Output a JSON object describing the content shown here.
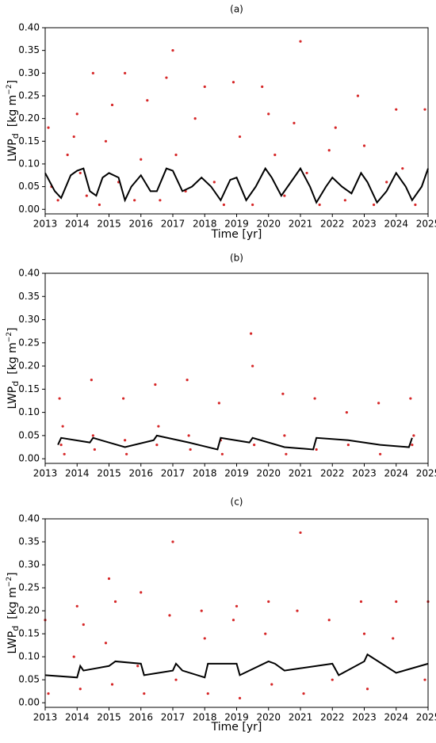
{
  "chart_data": [
    {
      "type": "scatter",
      "title": "(a)",
      "xlabel": "Time  [yr]",
      "ylabel": {
        "main": "LWP",
        "sub": "d",
        "unit": "[kg m",
        "sup": "−2",
        "end": "]"
      },
      "xlim": [
        2013,
        2025
      ],
      "ylim": [
        -0.01,
        0.4
      ],
      "xticks": [
        2013,
        2014,
        2015,
        2016,
        2017,
        2018,
        2019,
        2020,
        2021,
        2022,
        2023,
        2024,
        2025
      ],
      "yticks": [
        {
          "value": 0,
          "label": "0.00"
        },
        0.05,
        {
          "value": 0.1,
          "label": "0.10"
        },
        0.15,
        {
          "value": 0.2,
          "label": "0.20"
        },
        0.25,
        {
          "value": 0.3,
          "label": "0.30"
        },
        0.35,
        {
          "value": 0.4,
          "label": "0.40"
        }
      ],
      "points": {
        "color": "#d62728",
        "x": [
          2013.1,
          2013.2,
          2013.4,
          2013.7,
          2013.9,
          2014.0,
          2014.1,
          2014.3,
          2014.5,
          2014.7,
          2014.9,
          2015.1,
          2015.3,
          2015.5,
          2015.8,
          2016.0,
          2016.2,
          2016.6,
          2016.8,
          2017.0,
          2017.1,
          2017.4,
          2017.7,
          2018.0,
          2018.3,
          2018.6,
          2018.9,
          2019.1,
          2019.5,
          2019.8,
          2020.0,
          2020.2,
          2020.5,
          2020.8,
          2021.0,
          2021.2,
          2021.6,
          2021.9,
          2022.1,
          2022.4,
          2022.8,
          2023.0,
          2023.3,
          2023.7,
          2024.0,
          2024.2,
          2024.6,
          2024.9
        ],
        "y": [
          0.18,
          0.05,
          0.02,
          0.12,
          0.16,
          0.21,
          0.08,
          0.03,
          0.3,
          0.01,
          0.15,
          0.23,
          0.06,
          0.3,
          0.02,
          0.11,
          0.24,
          0.02,
          0.29,
          0.35,
          0.12,
          0.04,
          0.2,
          0.27,
          0.06,
          0.01,
          0.28,
          0.16,
          0.01,
          0.27,
          0.21,
          0.12,
          0.03,
          0.19,
          0.37,
          0.08,
          0.01,
          0.13,
          0.18,
          0.02,
          0.25,
          0.14,
          0.01,
          0.06,
          0.22,
          0.09,
          0.01,
          0.22
        ]
      },
      "line": {
        "color": "#000000",
        "x": [
          2013,
          2013.3,
          2013.5,
          2013.8,
          2014,
          2014.2,
          2014.4,
          2014.6,
          2014.8,
          2015,
          2015.3,
          2015.5,
          2015.7,
          2016,
          2016.3,
          2016.5,
          2016.8,
          2017,
          2017.3,
          2017.6,
          2017.9,
          2018.2,
          2018.5,
          2018.8,
          2019,
          2019.3,
          2019.6,
          2019.9,
          2020.1,
          2020.4,
          2020.7,
          2021,
          2021.3,
          2021.5,
          2021.8,
          2022,
          2022.3,
          2022.6,
          2022.9,
          2023.1,
          2023.4,
          2023.7,
          2024,
          2024.3,
          2024.5,
          2024.8,
          2025
        ],
        "y": [
          0.08,
          0.04,
          0.025,
          0.075,
          0.085,
          0.09,
          0.04,
          0.03,
          0.07,
          0.08,
          0.07,
          0.02,
          0.05,
          0.075,
          0.04,
          0.04,
          0.09,
          0.085,
          0.04,
          0.05,
          0.07,
          0.05,
          0.02,
          0.065,
          0.07,
          0.02,
          0.05,
          0.09,
          0.07,
          0.03,
          0.06,
          0.09,
          0.05,
          0.015,
          0.05,
          0.07,
          0.05,
          0.035,
          0.08,
          0.06,
          0.015,
          0.04,
          0.08,
          0.05,
          0.02,
          0.05,
          0.09
        ]
      }
    },
    {
      "type": "scatter",
      "title": "(b)",
      "ylabel": {
        "main": "LWP",
        "sub": "d",
        "unit": "[kg m",
        "sup": "−2",
        "end": "]"
      },
      "xlim": [
        2013,
        2025
      ],
      "ylim": [
        -0.01,
        0.4
      ],
      "xticks": [
        2013,
        2014,
        2015,
        2016,
        2017,
        2018,
        2019,
        2020,
        2021,
        2022,
        2023,
        2024,
        2025
      ],
      "yticks": [
        {
          "value": 0,
          "label": "0.00"
        },
        0.05,
        {
          "value": 0.1,
          "label": "0.10"
        },
        0.15,
        {
          "value": 0.2,
          "label": "0.20"
        },
        0.25,
        {
          "value": 0.3,
          "label": "0.30"
        },
        0.35,
        {
          "value": 0.4,
          "label": "0.40"
        }
      ],
      "points": {
        "color": "#d62728",
        "x": [
          2013.45,
          2013.5,
          2013.55,
          2013.6,
          2014.45,
          2014.5,
          2014.55,
          2015.45,
          2015.5,
          2015.55,
          2016.45,
          2016.5,
          2016.55,
          2017.45,
          2017.5,
          2017.55,
          2018.45,
          2018.5,
          2018.55,
          2019.45,
          2019.5,
          2019.55,
          2020.45,
          2020.5,
          2020.55,
          2021.45,
          2021.5,
          2022.45,
          2022.5,
          2023.45,
          2023.5,
          2024.45,
          2024.5,
          2024.55
        ],
        "y": [
          0.13,
          0.03,
          0.07,
          0.01,
          0.17,
          0.05,
          0.02,
          0.13,
          0.04,
          0.01,
          0.16,
          0.03,
          0.07,
          0.17,
          0.05,
          0.02,
          0.12,
          0.04,
          0.01,
          0.27,
          0.2,
          0.03,
          0.14,
          0.05,
          0.01,
          0.13,
          0.02,
          0.1,
          0.03,
          0.12,
          0.01,
          0.13,
          0.03,
          0.05
        ]
      },
      "line": {
        "color": "#000000",
        "x": [
          2013.4,
          2013.5,
          2014.4,
          2014.5,
          2015.5,
          2016.4,
          2016.5,
          2017.5,
          2018.4,
          2018.5,
          2019.4,
          2019.5,
          2020.5,
          2021.4,
          2021.5,
          2022.5,
          2023.5,
          2024.4,
          2024.5
        ],
        "y": [
          0.03,
          0.045,
          0.035,
          0.045,
          0.025,
          0.04,
          0.05,
          0.035,
          0.02,
          0.045,
          0.035,
          0.045,
          0.025,
          0.02,
          0.045,
          0.04,
          0.03,
          0.025,
          0.045
        ]
      }
    },
    {
      "type": "scatter",
      "title": "(c)",
      "xlabel": "Time  [yr]",
      "ylabel": {
        "main": "LWP",
        "sub": "d",
        "unit": "[kg m",
        "sup": "−2",
        "end": "]"
      },
      "xlim": [
        2013,
        2025
      ],
      "ylim": [
        -0.01,
        0.4
      ],
      "xticks": [
        2013,
        2014,
        2015,
        2016,
        2017,
        2018,
        2019,
        2020,
        2021,
        2022,
        2023,
        2024,
        2025
      ],
      "yticks": [
        {
          "value": 0,
          "label": "0.00"
        },
        0.05,
        {
          "value": 0.1,
          "label": "0.10"
        },
        0.15,
        {
          "value": 0.2,
          "label": "0.20"
        },
        0.25,
        {
          "value": 0.3,
          "label": "0.30"
        },
        0.35,
        {
          "value": 0.4,
          "label": "0.40"
        }
      ],
      "points": {
        "color": "#d62728",
        "x": [
          2013.0,
          2013.1,
          2013.9,
          2014.0,
          2014.1,
          2014.2,
          2014.9,
          2015.0,
          2015.1,
          2015.2,
          2015.9,
          2016.0,
          2016.1,
          2016.9,
          2017.0,
          2017.1,
          2017.9,
          2018.0,
          2018.1,
          2018.9,
          2019.0,
          2019.1,
          2019.9,
          2020.0,
          2020.1,
          2020.9,
          2021.0,
          2021.1,
          2021.9,
          2022.0,
          2022.9,
          2023.0,
          2023.1,
          2023.9,
          2024.0,
          2024.9,
          2025.0
        ],
        "y": [
          0.18,
          0.02,
          0.1,
          0.21,
          0.03,
          0.17,
          0.13,
          0.27,
          0.04,
          0.22,
          0.08,
          0.24,
          0.02,
          0.19,
          0.35,
          0.05,
          0.2,
          0.14,
          0.02,
          0.18,
          0.21,
          0.01,
          0.15,
          0.22,
          0.04,
          0.2,
          0.37,
          0.02,
          0.18,
          0.05,
          0.22,
          0.15,
          0.03,
          0.14,
          0.22,
          0.05,
          0.22
        ]
      },
      "line": {
        "color": "#000000",
        "x": [
          2013,
          2014,
          2014.1,
          2014.2,
          2015,
          2015.2,
          2016,
          2016.1,
          2017,
          2017.1,
          2017.3,
          2018,
          2018.1,
          2019,
          2019.1,
          2020,
          2020.2,
          2020.5,
          2021,
          2022,
          2022.2,
          2023,
          2023.1,
          2024,
          2025
        ],
        "y": [
          0.06,
          0.055,
          0.08,
          0.07,
          0.08,
          0.09,
          0.085,
          0.06,
          0.07,
          0.085,
          0.07,
          0.055,
          0.085,
          0.085,
          0.06,
          0.09,
          0.085,
          0.07,
          0.075,
          0.085,
          0.06,
          0.09,
          0.105,
          0.065,
          0.085
        ]
      }
    }
  ]
}
